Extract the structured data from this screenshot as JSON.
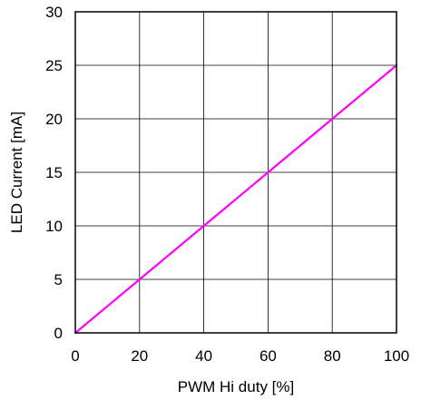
{
  "chart_data": {
    "type": "line",
    "xlabel": "PWM Hi duty [%]",
    "ylabel": "LED Current [mA]",
    "xlim": [
      0,
      100
    ],
    "ylim": [
      0,
      30
    ],
    "xticks": [
      0,
      20,
      40,
      60,
      80,
      100
    ],
    "yticks": [
      0,
      5,
      10,
      15,
      20,
      25,
      30
    ],
    "grid": true,
    "series": [
      {
        "x": [
          0,
          20,
          40,
          60,
          80,
          100
        ],
        "y": [
          0,
          5,
          10,
          15,
          20,
          25
        ],
        "color": "#ff00ff"
      }
    ]
  }
}
